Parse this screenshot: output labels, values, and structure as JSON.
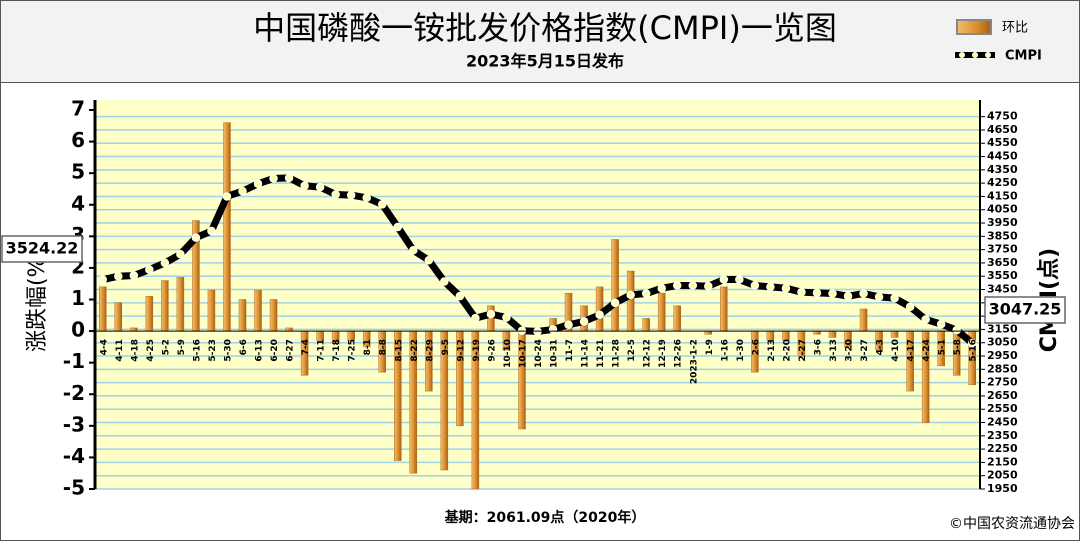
{
  "chart_data": {
    "type": "bar",
    "title": "中国磷酸一铵批发价格指数(CMPI)一览图",
    "subtitle": "2023年5月15日发布",
    "ylabel": "涨跌幅(%)",
    "y2label": "CMPI(点)",
    "footer": "基期：2061.09点（2020年）",
    "source": "©中国农资流通协会",
    "categories": [
      "4-4",
      "4-11",
      "4-18",
      "4-25",
      "5-2",
      "5-9",
      "5-16",
      "5-23",
      "5-30",
      "6-6",
      "6-13",
      "6-20",
      "6-27",
      "7-4",
      "7-11",
      "7-18",
      "7-25",
      "8-1",
      "8-8",
      "8-15",
      "8-22",
      "8-29",
      "9-5",
      "9-12",
      "9-19",
      "9-26",
      "10-10",
      "10-17",
      "10-24",
      "10-31",
      "11-7",
      "11-14",
      "11-21",
      "11-28",
      "12-5",
      "12-12",
      "12-19",
      "12-26",
      "2023-1-2",
      "1-9",
      "1-16",
      "1-30",
      "2-6",
      "2-13",
      "2-20",
      "2-27",
      "3-6",
      "3-13",
      "3-20",
      "3-27",
      "4-3",
      "4-10",
      "4-17",
      "4-24",
      "5-1",
      "5-8",
      "5-16"
    ],
    "series": [
      {
        "name": "环比",
        "type": "bar",
        "color": "#d98b2b",
        "values": [
          1.4,
          0.9,
          0.1,
          1.1,
          1.6,
          1.7,
          3.5,
          1.3,
          6.6,
          1.0,
          1.3,
          1.0,
          0.1,
          -1.4,
          -0.3,
          -0.4,
          -0.3,
          -0.5,
          -1.3,
          -4.1,
          -4.5,
          -1.9,
          -4.4,
          -3.0,
          -5.0,
          0.8,
          -0.6,
          -3.1,
          -0.1,
          0.4,
          1.2,
          0.8,
          1.4,
          2.9,
          1.9,
          0.4,
          1.2,
          0.8,
          0.0,
          -0.1,
          1.4,
          0.0,
          -1.3,
          -0.3,
          -0.3,
          -0.8,
          -0.1,
          -0.2,
          -0.5,
          0.7,
          -0.6,
          -0.2,
          -1.9,
          -2.9,
          -1.1,
          -1.4,
          -1.7
        ]
      },
      {
        "name": "CMPI",
        "type": "line",
        "axis": "y2",
        "color": "#000000",
        "values": [
          3524.22,
          3550,
          3555,
          3600,
          3650,
          3715,
          3840,
          3890,
          4150,
          4190,
          4245,
          4285,
          4290,
          4230,
          4220,
          4165,
          4160,
          4140,
          4090,
          3920,
          3745,
          3670,
          3510,
          3400,
          3235,
          3265,
          3240,
          3140,
          3135,
          3150,
          3185,
          3210,
          3260,
          3350,
          3410,
          3420,
          3460,
          3480,
          3480,
          3475,
          3525,
          3525,
          3480,
          3470,
          3460,
          3430,
          3425,
          3420,
          3400,
          3420,
          3395,
          3385,
          3320,
          3225,
          3190,
          3145,
          3047.25
        ]
      }
    ],
    "ylim": [
      -5,
      7
    ],
    "yticks": [
      -5,
      -4,
      -3,
      -2,
      -1,
      0,
      1,
      2,
      3,
      4,
      5,
      6,
      7
    ],
    "y2lim": [
      1950,
      4800
    ],
    "y2ticks": [
      1950,
      2050,
      2150,
      2250,
      2350,
      2450,
      2550,
      2650,
      2750,
      2850,
      2950,
      3050,
      3150,
      3250,
      3350,
      3450,
      3550,
      3650,
      3750,
      3850,
      3950,
      4050,
      4150,
      4250,
      4350,
      4450,
      4550,
      4650,
      4750
    ],
    "grid": true
  }
}
